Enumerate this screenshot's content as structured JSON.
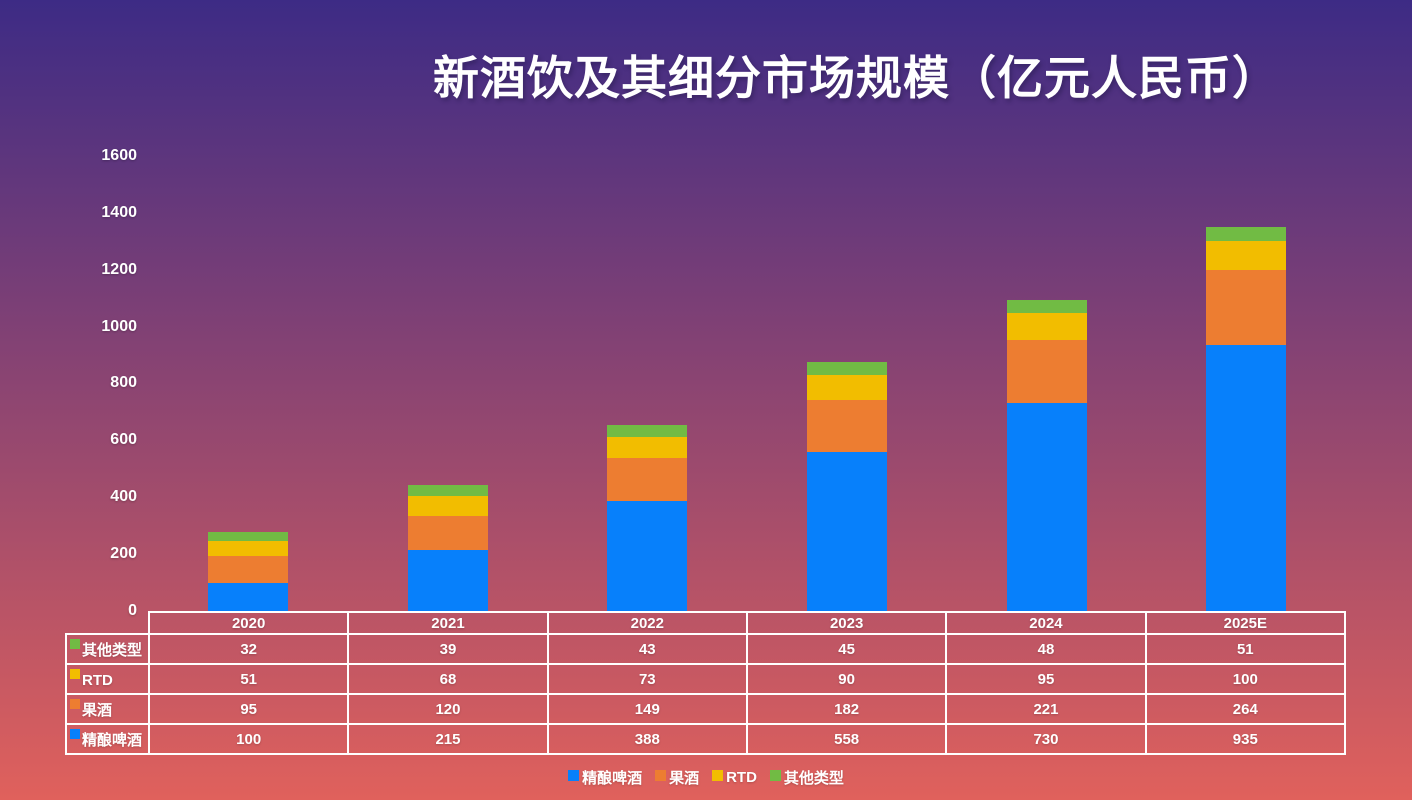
{
  "title": "新酒饮及其细分市场规模（亿元人民币）",
  "theme": {
    "background_top": "#3D2B85",
    "background_bottom": "#E0615C",
    "text_color": "#FFFFFF",
    "table_border_color": "#FFFFFF"
  },
  "chart_data": {
    "type": "bar",
    "stacked": true,
    "title": "新酒饮及其细分市场规模（亿元人民币）",
    "categories": [
      "2020",
      "2021",
      "2022",
      "2023",
      "2024",
      "2025E"
    ],
    "series": [
      {
        "key": "craft-beer",
        "name": "精酿啤酒",
        "color": "#0780FB",
        "values": [
          100,
          215,
          388,
          558,
          730,
          935
        ]
      },
      {
        "key": "fruit-wine",
        "name": "果酒",
        "color": "#ED7D31",
        "values": [
          95,
          120,
          149,
          182,
          221,
          264
        ]
      },
      {
        "key": "rtd",
        "name": "RTD",
        "color": "#F2BD00",
        "values": [
          51,
          68,
          73,
          90,
          95,
          100
        ]
      },
      {
        "key": "other-types",
        "name": "其他类型",
        "color": "#71BB44",
        "values": [
          32,
          39,
          43,
          45,
          48,
          51
        ]
      }
    ],
    "totals": [
      278,
      442,
      653,
      875,
      1094,
      1350
    ],
    "xlabel": "",
    "ylabel": "",
    "ylim": [
      0,
      1600
    ],
    "yticks": [
      0,
      200,
      400,
      600,
      800,
      1000,
      1200,
      1400,
      1600
    ],
    "grid": false,
    "legend_position": "bottom"
  },
  "table": {
    "header": [
      "2020",
      "2021",
      "2022",
      "2023",
      "2024",
      "2025E"
    ],
    "rows": [
      {
        "key": "other-types",
        "label": "其他类型",
        "color": "#71BB44",
        "values": [
          32,
          39,
          43,
          45,
          48,
          51
        ]
      },
      {
        "key": "rtd",
        "label": "RTD",
        "color": "#F2BD00",
        "values": [
          51,
          68,
          73,
          90,
          95,
          100
        ]
      },
      {
        "key": "fruit-wine",
        "label": "果酒",
        "color": "#ED7D31",
        "values": [
          95,
          120,
          149,
          182,
          221,
          264
        ]
      },
      {
        "key": "craft-beer",
        "label": "精酿啤酒",
        "color": "#0780FB",
        "values": [
          100,
          215,
          388,
          558,
          730,
          935
        ]
      }
    ]
  },
  "legend": [
    {
      "key": "craft-beer",
      "label": "精酿啤酒",
      "color": "#0780FB"
    },
    {
      "key": "fruit-wine",
      "label": "果酒",
      "color": "#ED7D31"
    },
    {
      "key": "rtd",
      "label": "RTD",
      "color": "#F2BD00"
    },
    {
      "key": "other-types",
      "label": "其他类型",
      "color": "#71BB44"
    }
  ]
}
